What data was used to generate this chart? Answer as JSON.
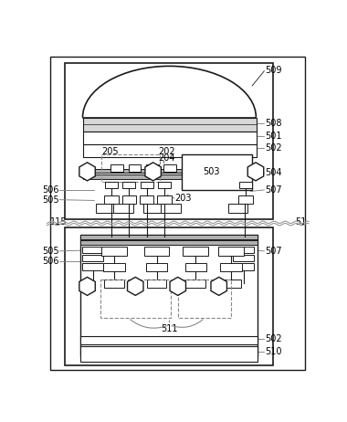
{
  "bg_color": "#ffffff",
  "lc": "#1a1a1a",
  "dc": "#888888",
  "gc": "#bbbbbb",
  "fig_w": 3.8,
  "fig_h": 4.62
}
